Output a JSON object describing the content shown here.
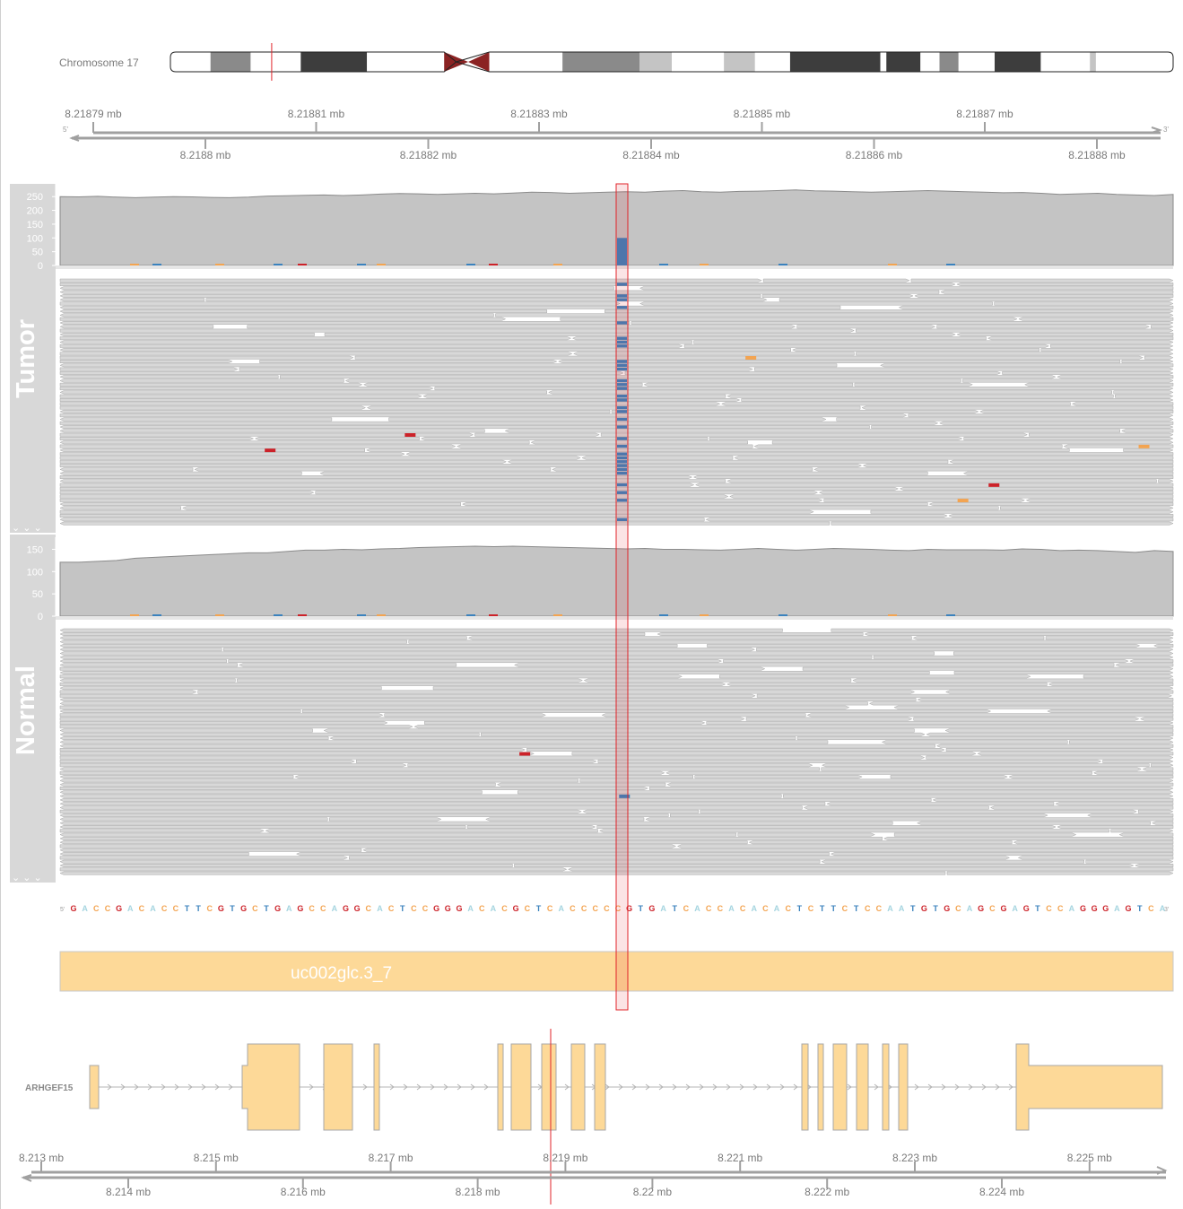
{
  "ideogram": {
    "label": "Chromosome 17",
    "bands": [
      {
        "from": 0.0,
        "to": 0.04,
        "color": "#ffffff"
      },
      {
        "from": 0.04,
        "to": 0.08,
        "color": "#8a8a8a"
      },
      {
        "from": 0.08,
        "to": 0.13,
        "color": "#ffffff"
      },
      {
        "from": 0.13,
        "to": 0.196,
        "color": "#3d3d3d"
      },
      {
        "from": 0.196,
        "to": 0.273,
        "color": "#ffffff"
      },
      {
        "from": 0.273,
        "to": 0.297,
        "color": "#8b2323",
        "kind": "centro-left"
      },
      {
        "from": 0.297,
        "to": 0.318,
        "color": "#8b2323",
        "kind": "centro-right"
      },
      {
        "from": 0.318,
        "to": 0.391,
        "color": "#ffffff"
      },
      {
        "from": 0.391,
        "to": 0.468,
        "color": "#8a8a8a"
      },
      {
        "from": 0.468,
        "to": 0.5,
        "color": "#c4c4c4"
      },
      {
        "from": 0.5,
        "to": 0.552,
        "color": "#ffffff"
      },
      {
        "from": 0.552,
        "to": 0.583,
        "color": "#c4c4c4"
      },
      {
        "from": 0.583,
        "to": 0.618,
        "color": "#ffffff"
      },
      {
        "from": 0.618,
        "to": 0.708,
        "color": "#3d3d3d"
      },
      {
        "from": 0.708,
        "to": 0.714,
        "color": "#ffffff"
      },
      {
        "from": 0.714,
        "to": 0.748,
        "color": "#3d3d3d"
      },
      {
        "from": 0.748,
        "to": 0.767,
        "color": "#ffffff"
      },
      {
        "from": 0.767,
        "to": 0.786,
        "color": "#8a8a8a"
      },
      {
        "from": 0.786,
        "to": 0.822,
        "color": "#ffffff"
      },
      {
        "from": 0.822,
        "to": 0.868,
        "color": "#3d3d3d"
      },
      {
        "from": 0.868,
        "to": 0.917,
        "color": "#ffffff"
      },
      {
        "from": 0.917,
        "to": 0.923,
        "color": "#c4c4c4"
      },
      {
        "from": 0.923,
        "to": 1.0,
        "color": "#ffffff"
      }
    ],
    "marker_frac": 0.101
  },
  "top_axis": {
    "upper_ticks": [
      "8.21879 mb",
      "8.21881 mb",
      "8.21883 mb",
      "8.21885 mb",
      "8.21887 mb"
    ],
    "lower_ticks": [
      "8.2188 mb",
      "8.21882 mb",
      "8.21884 mb",
      "8.21886 mb",
      "8.21888 mb"
    ],
    "left_end": "5'",
    "right_end": "3'"
  },
  "tracks": {
    "tumor": {
      "label": "Tumor",
      "coverage_ticks": [
        "250",
        "200",
        "150",
        "100",
        "50",
        "0"
      ],
      "coverage_max": 280,
      "coverage_profile": [
        250,
        249,
        251,
        248,
        246,
        248,
        250,
        249,
        247,
        246,
        248,
        252,
        253,
        255,
        256,
        254,
        256,
        259,
        261,
        260,
        258,
        260,
        262,
        260,
        263,
        266,
        265,
        262,
        264,
        266,
        268,
        266,
        270,
        272,
        268,
        266,
        269,
        270,
        272,
        274,
        271,
        270,
        268,
        266,
        268,
        270,
        272,
        270,
        268,
        266,
        264,
        265,
        262,
        258,
        260,
        262,
        258,
        256,
        254,
        258
      ],
      "alt_count": 100
    },
    "normal": {
      "label": "Normal",
      "coverage_ticks": [
        "150",
        "100",
        "50",
        "0"
      ],
      "coverage_max": 165,
      "coverage_profile": [
        121,
        121,
        123,
        125,
        130,
        132,
        134,
        136,
        138,
        140,
        142,
        142,
        145,
        148,
        148,
        150,
        149,
        151,
        152,
        154,
        155,
        156,
        157,
        156,
        157,
        156,
        155,
        154,
        153,
        152,
        151,
        152,
        150,
        150,
        149,
        148,
        150,
        152,
        150,
        148,
        150,
        152,
        151,
        150,
        148,
        147,
        150,
        149,
        149,
        149,
        148,
        151,
        150,
        147,
        148,
        147,
        145,
        143,
        147,
        145
      ]
    }
  },
  "sequence": {
    "left_end": "5'",
    "right_end": "3'",
    "bases": "GACCGACACCTTCGTGCTGAGCCAGGCACTCCGGGACACGCTCACCCCCGTGATCACCACACACTCTTCTCCAATGTGCAGCGAGTCCAGGGAGTCA",
    "colors": {
      "A": "#a6d5e0",
      "C": "#f3a451",
      "G": "#cc2229",
      "T": "#3b82bd"
    }
  },
  "exon_track": {
    "label": "uc002glc.3_7",
    "color": "#fdd998"
  },
  "gene": {
    "name": "ARHGEF15",
    "color": "#fdd998"
  },
  "bottom_axis": {
    "upper_ticks": [
      "8.213 mb",
      "8.215 mb",
      "8.217 mb",
      "8.219 mb",
      "8.221 mb",
      "8.223 mb",
      "8.225 mb"
    ],
    "lower_ticks": [
      "8.214 mb",
      "8.216 mb",
      "8.218 mb",
      "8.22 mb",
      "8.222 mb",
      "8.224 mb"
    ]
  },
  "colors": {
    "read": "#d8d8d8",
    "read_border": "#a8a8a8",
    "coverage": "#c4c4c4",
    "panel": "#d8d8d8",
    "highlight": "#e12329",
    "snv_blue": "#3b82bd",
    "snv_red": "#cc2229",
    "snv_orange": "#f3a451"
  }
}
